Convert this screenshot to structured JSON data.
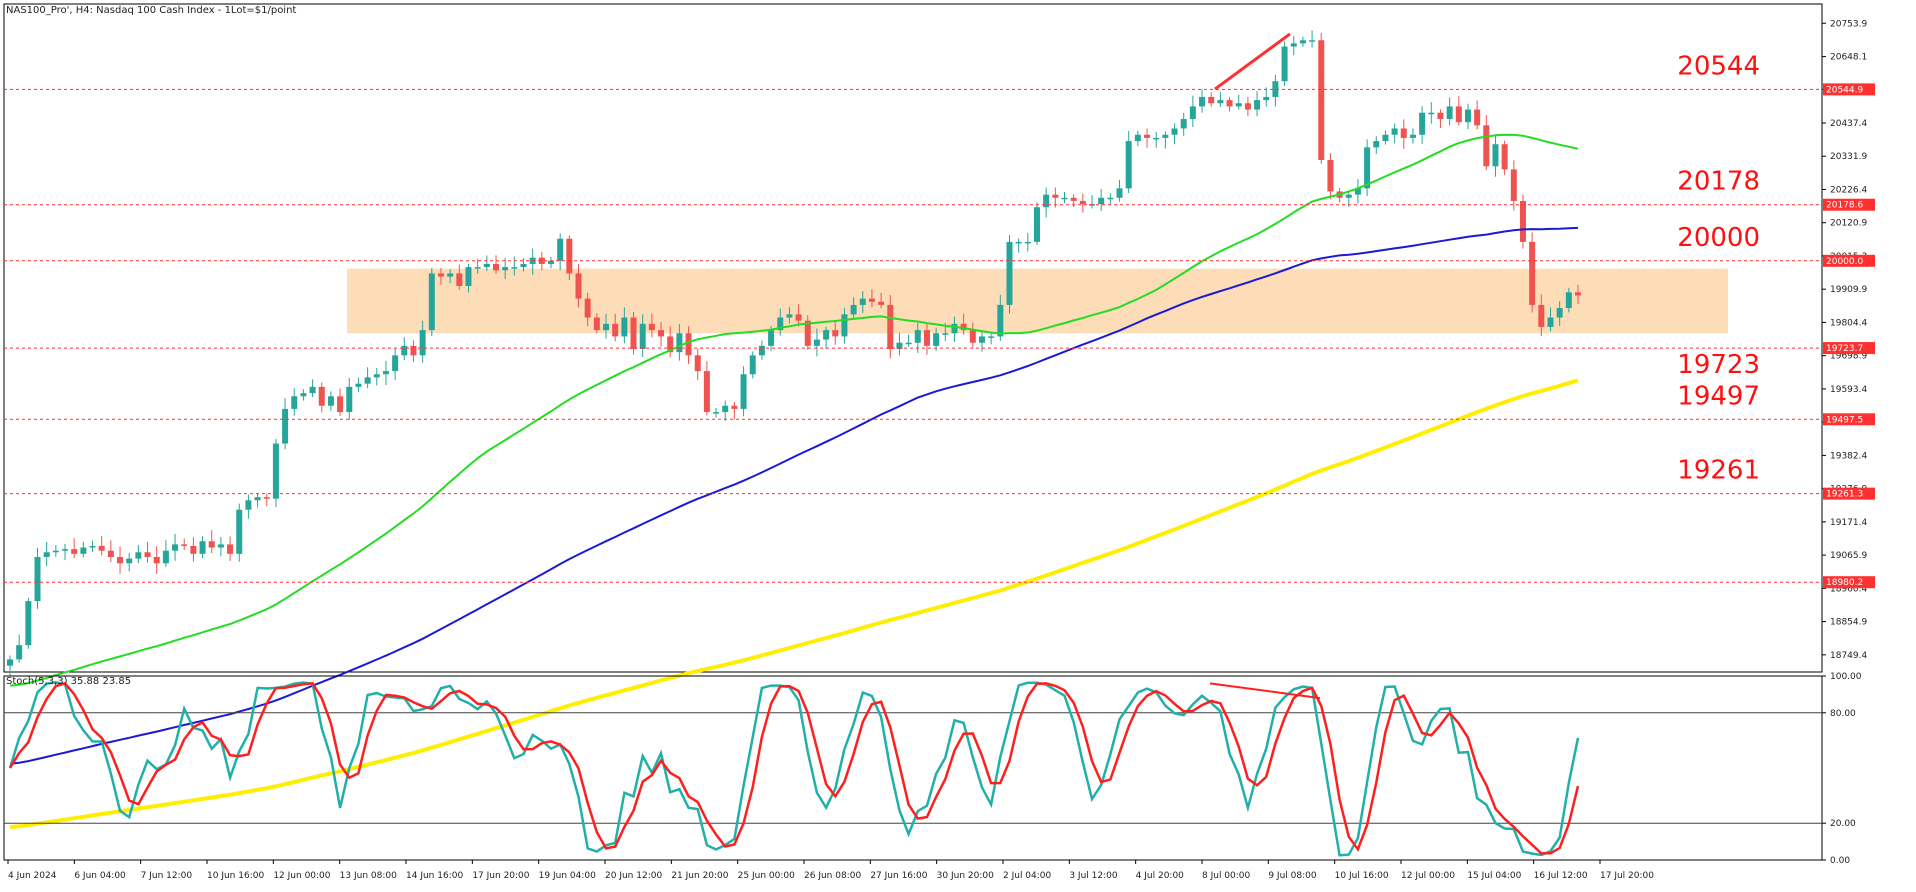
{
  "header": {
    "symbol_line": "NAS100_Pro', H4:  Nasdaq 100 Cash Index - 1Lot=$1/point",
    "indicator_line": "Stoch(5,3,3) 35.88 23.85"
  },
  "colors": {
    "background": "#ffffff",
    "bull_candle": "#26a69a",
    "bear_candle": "#ef5350",
    "ma_fast": "#22dd22",
    "ma_mid": "#1a1ad6",
    "ma_slow": "#ffee00",
    "level_line": "#ff3030",
    "zone": "#fdd8b0",
    "stoch_main": "#20b0a8",
    "stoch_signal": "#ff1f1f"
  },
  "chart_data": [
    {
      "type": "candlestick",
      "title": "NAS100_Pro', H4:  Nasdaq 100 Cash Index - 1Lot=$1/point",
      "y_ticks": [
        "20753.9",
        "20648.1",
        "20544.0",
        "20437.4",
        "20331.9",
        "20226.4",
        "20120.9",
        "20015.3",
        "19909.9",
        "19804.4",
        "19698.9",
        "19593.4",
        "19488.0",
        "19382.4",
        "19276.9",
        "19171.4",
        "19065.9",
        "18960.4",
        "18854.9",
        "18749.4"
      ],
      "ylim": [
        18695,
        20815
      ],
      "x_tick_labels": [
        "4 Jun 2024",
        "6 Jun 04:00",
        "7 Jun 12:00",
        "10 Jun 16:00",
        "12 Jun 00:00",
        "13 Jun 08:00",
        "14 Jun 16:00",
        "17 Jun 20:00",
        "19 Jun 04:00",
        "20 Jun 12:00",
        "21 Jun 20:00",
        "25 Jun 00:00",
        "26 Jun 08:00",
        "27 Jun 16:00",
        "30 Jun 20:00",
        "2 Jul 04:00",
        "3 Jul 12:00",
        "4 Jul 20:00",
        "8 Jul 00:00",
        "9 Jul 08:00",
        "10 Jul 16:00",
        "12 Jul 00:00",
        "15 Jul 04:00",
        "16 Jul 12:00",
        "17 Jul 20:00"
      ],
      "levels": [
        {
          "value": 20544,
          "label": "20544",
          "tag": "20544.9"
        },
        {
          "value": 20178,
          "label": "20178",
          "tag": "20178.6"
        },
        {
          "value": 20000,
          "label": "20000",
          "tag": "20000.0"
        },
        {
          "value": 19723,
          "label": "19723",
          "tag": "19723.7"
        },
        {
          "value": 19497,
          "label": "19497",
          "tag": "19497.5"
        },
        {
          "value": 19261,
          "label": "19261",
          "tag": "19261.3"
        },
        {
          "value": 18980,
          "label": "",
          "tag": "18980.2"
        }
      ],
      "zone": {
        "from": 19770,
        "to": 19975
      },
      "close_series": [
        18735,
        18780,
        18920,
        19060,
        19075,
        19080,
        19085,
        19070,
        19090,
        19095,
        19080,
        19060,
        19040,
        19055,
        19075,
        19060,
        19040,
        19080,
        19100,
        19095,
        19070,
        19110,
        19090,
        19100,
        19070,
        19210,
        19240,
        19250,
        19245,
        19420,
        19530,
        19570,
        19580,
        19600,
        19540,
        19570,
        19520,
        19600,
        19610,
        19630,
        19640,
        19650,
        19700,
        19730,
        19700,
        19780,
        19960,
        19950,
        19960,
        19920,
        19980,
        19980,
        19990,
        19970,
        19980,
        19980,
        19990,
        20010,
        19990,
        20000,
        20070,
        19960,
        19880,
        19820,
        19780,
        19800,
        19760,
        19820,
        19720,
        19800,
        19780,
        19760,
        19710,
        19770,
        19700,
        19650,
        19520,
        19520,
        19540,
        19530,
        19640,
        19700,
        19730,
        19780,
        19820,
        19830,
        19810,
        19730,
        19750,
        19780,
        19760,
        19830,
        19860,
        19880,
        19870,
        19860,
        19720,
        19740,
        19740,
        19780,
        19730,
        19770,
        19770,
        19800,
        19780,
        19740,
        19760,
        19760,
        19860,
        20060,
        20060,
        20060,
        20170,
        20210,
        20200,
        20200,
        20190,
        20180,
        20180,
        20200,
        20200,
        20230,
        20380,
        20400,
        20390,
        20390,
        20400,
        20420,
        20450,
        20490,
        20520,
        20500,
        20510,
        20490,
        20500,
        20480,
        20510,
        20520,
        20570,
        20680,
        20690,
        20700,
        20700,
        20320,
        20220,
        20200,
        20210,
        20230,
        20360,
        20380,
        20400,
        20420,
        20390,
        20400,
        20470,
        20470,
        20450,
        20490,
        20440,
        20480,
        20430,
        20300,
        20370,
        20290,
        20190,
        20060,
        19860,
        19790,
        19820,
        19850,
        19900,
        19890
      ]
    },
    {
      "type": "line",
      "title": "Stoch(5,3,3) 35.88 23.85",
      "y_ticks": [
        "100.00",
        "80.00",
        "20.00",
        "0.00"
      ],
      "ylim": [
        0,
        100
      ],
      "levels": [
        80,
        20
      ],
      "main_value": 35.88,
      "signal_value": 23.85
    }
  ]
}
